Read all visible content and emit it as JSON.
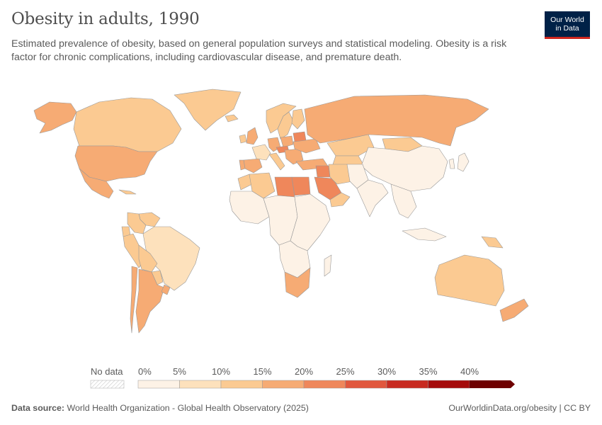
{
  "header": {
    "title": "Obesity in adults, 1990",
    "subtitle": "Estimated prevalence of obesity, based on general population surveys and statistical modeling. Obesity is a risk factor for chronic complications, including cardiovascular disease, and premature death."
  },
  "logo": {
    "line1": "Our World",
    "line2": "in Data",
    "bg_color": "#002147",
    "accent_color": "#ce261e"
  },
  "legend": {
    "no_data_label": "No data",
    "ticks": [
      "0%",
      "5%",
      "10%",
      "15%",
      "20%",
      "25%",
      "30%",
      "35%",
      "40%"
    ],
    "colors": [
      "#fdf2e6",
      "#fde1bc",
      "#fbca92",
      "#f6ab74",
      "#ef875b",
      "#e1573d",
      "#c82a20",
      "#a50b0b",
      "#6e0000"
    ]
  },
  "footer": {
    "source_label": "Data source:",
    "source_text": "World Health Organization - Global Health Observatory (2025)",
    "credit": "OurWorldinData.org/obesity | CC BY"
  },
  "chart_data": {
    "type": "choropleth",
    "year": 1990,
    "unit": "%",
    "scale": [
      0,
      5,
      10,
      15,
      20,
      25,
      30,
      35,
      40
    ],
    "regions": [
      {
        "name": "Alaska",
        "value": 18
      },
      {
        "name": "Canada",
        "value": 12
      },
      {
        "name": "Greenland",
        "value": 12
      },
      {
        "name": "United States",
        "value": 19
      },
      {
        "name": "Mexico",
        "value": 17
      },
      {
        "name": "Cuba",
        "value": 10
      },
      {
        "name": "Venezuela",
        "value": 14
      },
      {
        "name": "Colombia",
        "value": 12
      },
      {
        "name": "Ecuador",
        "value": 11
      },
      {
        "name": "Peru",
        "value": 12
      },
      {
        "name": "Brazil",
        "value": 9
      },
      {
        "name": "Bolivia",
        "value": 10
      },
      {
        "name": "Paraguay",
        "value": 13
      },
      {
        "name": "Chile",
        "value": 17
      },
      {
        "name": "Argentina",
        "value": 17
      },
      {
        "name": "Uruguay",
        "value": 15
      },
      {
        "name": "Iceland",
        "value": 13
      },
      {
        "name": "Norway",
        "value": 10
      },
      {
        "name": "Sweden",
        "value": 10
      },
      {
        "name": "Finland",
        "value": 13
      },
      {
        "name": "United Kingdom",
        "value": 15
      },
      {
        "name": "Ireland",
        "value": 13
      },
      {
        "name": "Spain",
        "value": 17
      },
      {
        "name": "Portugal",
        "value": 15
      },
      {
        "name": "France",
        "value": 9
      },
      {
        "name": "Germany",
        "value": 15
      },
      {
        "name": "Poland",
        "value": 18
      },
      {
        "name": "Czechia",
        "value": 22
      },
      {
        "name": "Italy",
        "value": 14
      },
      {
        "name": "Balkans",
        "value": 17
      },
      {
        "name": "Ukraine",
        "value": 18
      },
      {
        "name": "Belarus",
        "value": 21
      },
      {
        "name": "Russia",
        "value": 18
      },
      {
        "name": "Turkey",
        "value": 17
      },
      {
        "name": "Kazakhstan",
        "value": 13
      },
      {
        "name": "Central Asia",
        "value": 10
      },
      {
        "name": "Mongolia",
        "value": 10
      },
      {
        "name": "China",
        "value": 3
      },
      {
        "name": "Japan",
        "value": 3
      },
      {
        "name": "Korea",
        "value": 4
      },
      {
        "name": "Morocco",
        "value": 11
      },
      {
        "name": "Algeria",
        "value": 10
      },
      {
        "name": "Libya",
        "value": 21
      },
      {
        "name": "Egypt",
        "value": 21
      },
      {
        "name": "Saudi Arabia",
        "value": 21
      },
      {
        "name": "Iraq",
        "value": 22
      },
      {
        "name": "Iran",
        "value": 14
      },
      {
        "name": "Yemen & Oman",
        "value": 12
      },
      {
        "name": "Afghanistan & Pakistan",
        "value": 4
      },
      {
        "name": "India",
        "value": 2
      },
      {
        "name": "Southeast Asia",
        "value": 2
      },
      {
        "name": "Indonesia",
        "value": 3
      },
      {
        "name": "Papua New Guinea",
        "value": 11
      },
      {
        "name": "West Africa",
        "value": 3
      },
      {
        "name": "Central Africa",
        "value": 3
      },
      {
        "name": "East Africa",
        "value": 2
      },
      {
        "name": "Southern Africa",
        "value": 4
      },
      {
        "name": "South Africa",
        "value": 18
      },
      {
        "name": "Madagascar",
        "value": 2
      },
      {
        "name": "Australia",
        "value": 12
      },
      {
        "name": "New Zealand",
        "value": 15
      }
    ]
  }
}
